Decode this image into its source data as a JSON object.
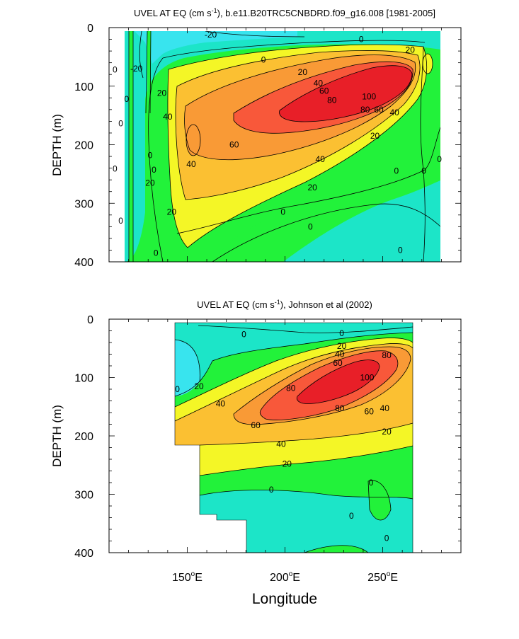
{
  "chart_data": [
    {
      "type": "contour",
      "title_main": "UVEL AT EQ (cm s",
      "title_sup": "-1",
      "title_rest": "), b.e11.B20TRC5CNBDRD.f09_g16.008 [1981-2005]",
      "xlabel": "",
      "ylabel": "DEPTH (m)",
      "xlim": [
        110,
        290
      ],
      "ylim": [
        0,
        400
      ],
      "y_inverted": true,
      "yticks": [
        "0",
        "100",
        "200",
        "300",
        "400"
      ],
      "contour_levels": [
        -20,
        0,
        20,
        40,
        60,
        80,
        100
      ],
      "contour_labels": [
        {
          "text": "-20",
          "lon": 162,
          "depth": 12
        },
        {
          "text": "0",
          "lon": 189,
          "depth": 55
        },
        {
          "text": "0",
          "lon": 239,
          "depth": 20
        },
        {
          "text": "20",
          "lon": 264,
          "depth": 38
        },
        {
          "text": "20",
          "lon": 137,
          "depth": 112
        },
        {
          "text": "20",
          "lon": 209,
          "depth": 76
        },
        {
          "text": "40",
          "lon": 217,
          "depth": 95
        },
        {
          "text": "60",
          "lon": 220,
          "depth": 108
        },
        {
          "text": "80",
          "lon": 224,
          "depth": 124
        },
        {
          "text": "100",
          "lon": 243,
          "depth": 118
        },
        {
          "text": "80",
          "lon": 241,
          "depth": 140
        },
        {
          "text": "60",
          "lon": 248,
          "depth": 140
        },
        {
          "text": "40",
          "lon": 256,
          "depth": 145
        },
        {
          "text": "40",
          "lon": 140,
          "depth": 152
        },
        {
          "text": "60",
          "lon": 174,
          "depth": 200
        },
        {
          "text": "40",
          "lon": 218,
          "depth": 225
        },
        {
          "text": "40",
          "lon": 152,
          "depth": 233
        },
        {
          "text": "20",
          "lon": 246,
          "depth": 185
        },
        {
          "text": "20",
          "lon": 131,
          "depth": 265
        },
        {
          "text": "20",
          "lon": 142,
          "depth": 315
        },
        {
          "text": "20",
          "lon": 214,
          "depth": 273
        },
        {
          "text": "0",
          "lon": 199,
          "depth": 315
        },
        {
          "text": "0",
          "lon": 213,
          "depth": 340
        },
        {
          "text": "0",
          "lon": 257,
          "depth": 245
        },
        {
          "text": "0",
          "lon": 113,
          "depth": 72
        },
        {
          "text": "0",
          "lon": 119,
          "depth": 122
        },
        {
          "text": "0",
          "lon": 116,
          "depth": 164
        },
        {
          "text": "0",
          "lon": 131,
          "depth": 218
        },
        {
          "text": "0",
          "lon": 113,
          "depth": 241
        },
        {
          "text": "0",
          "lon": 133,
          "depth": 243
        },
        {
          "text": "0",
          "lon": 116,
          "depth": 330
        },
        {
          "text": "0",
          "lon": 134,
          "depth": 385
        },
        {
          "text": "0",
          "lon": 271,
          "depth": 245
        },
        {
          "text": "0",
          "lon": 279,
          "depth": 225
        },
        {
          "text": "0",
          "lon": 259,
          "depth": 380
        },
        {
          "text": "-20",
          "lon": 124,
          "depth": 70
        }
      ],
      "core": {
        "lon": 234,
        "depth": 118,
        "max": 100
      }
    },
    {
      "type": "contour",
      "title_main": "UVEL AT EQ (cm s",
      "title_sup": "-1",
      "title_rest": "), Johnson et al (2002)",
      "xlabel": "Longitude",
      "ylabel": "DEPTH (m)",
      "xlim": [
        110,
        290
      ],
      "ylim": [
        0,
        400
      ],
      "y_inverted": true,
      "xticks": [
        {
          "value": 150,
          "main": "150",
          "sup": "o",
          "suffix": "E"
        },
        {
          "value": 200,
          "main": "200",
          "sup": "o",
          "suffix": "E"
        },
        {
          "value": 250,
          "main": "250",
          "sup": "o",
          "suffix": "E"
        }
      ],
      "yticks": [
        "0",
        "100",
        "200",
        "300",
        "400"
      ],
      "contour_levels": [
        0,
        20,
        40,
        60,
        80,
        100
      ],
      "contour_labels": [
        {
          "text": "0",
          "lon": 179,
          "depth": 26
        },
        {
          "text": "0",
          "lon": 229,
          "depth": 24
        },
        {
          "text": "20",
          "lon": 229,
          "depth": 46
        },
        {
          "text": "40",
          "lon": 228,
          "depth": 60
        },
        {
          "text": "60",
          "lon": 227,
          "depth": 75
        },
        {
          "text": "80",
          "lon": 252,
          "depth": 62
        },
        {
          "text": "100",
          "lon": 242,
          "depth": 100
        },
        {
          "text": "80",
          "lon": 203,
          "depth": 118
        },
        {
          "text": "80",
          "lon": 228,
          "depth": 153
        },
        {
          "text": "60",
          "lon": 243,
          "depth": 158
        },
        {
          "text": "40",
          "lon": 251,
          "depth": 153
        },
        {
          "text": "60",
          "lon": 185,
          "depth": 182
        },
        {
          "text": "40",
          "lon": 167,
          "depth": 145
        },
        {
          "text": "20",
          "lon": 156,
          "depth": 115
        },
        {
          "text": "20",
          "lon": 252,
          "depth": 193
        },
        {
          "text": "40",
          "lon": 198,
          "depth": 214
        },
        {
          "text": "20",
          "lon": 201,
          "depth": 248
        },
        {
          "text": "0",
          "lon": 145,
          "depth": 120
        },
        {
          "text": "0",
          "lon": 193,
          "depth": 292
        },
        {
          "text": "0",
          "lon": 244,
          "depth": 280
        },
        {
          "text": "0",
          "lon": 234,
          "depth": 337
        },
        {
          "text": "0",
          "lon": 252,
          "depth": 375
        }
      ],
      "core": {
        "lon": 236,
        "depth": 98,
        "max": 100
      },
      "data_extent": {
        "lon_min": 143,
        "lon_max": 265,
        "depth_top": 5,
        "depth_bottom": 400,
        "missing_steps": [
          {
            "lon": 156,
            "below": 215
          },
          {
            "lon": 165,
            "below": 333
          },
          {
            "lon": 181,
            "below": 345
          }
        ]
      }
    }
  ]
}
